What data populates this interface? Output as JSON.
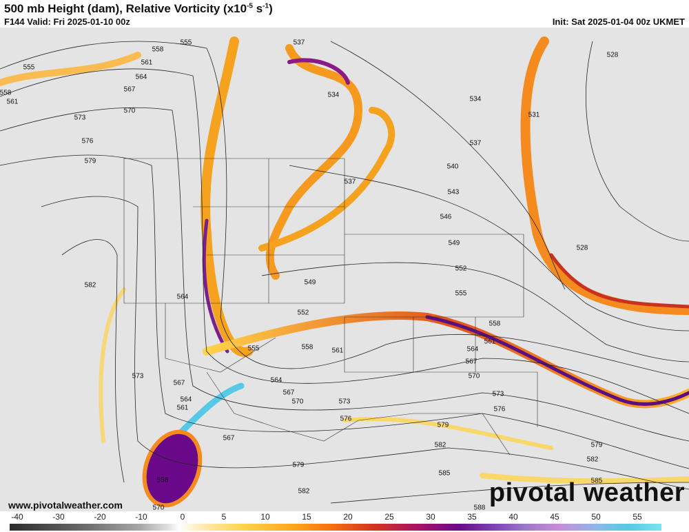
{
  "header": {
    "title": "500 mb Height (dam), Relative Vorticity (x10",
    "title_exp1": "-5",
    "title_mid": " s",
    "title_exp2": "-1",
    "title_end": ")",
    "valid": "F144 Valid: Fri 2025-01-10 00z",
    "init": "Init: Sat 2025-01-04 00z UKMET"
  },
  "contour_labels": [
    558,
    555,
    561,
    555,
    564,
    567,
    558,
    561,
    570,
    573,
    576,
    579,
    582,
    564,
    573,
    567,
    564,
    561,
    537,
    534,
    534,
    528,
    531,
    537,
    540,
    537,
    543,
    546,
    549,
    528,
    552,
    549,
    555,
    552,
    558,
    561,
    555,
    558,
    561,
    564,
    567,
    570,
    564,
    567,
    570,
    573,
    576,
    573,
    576,
    579,
    582,
    579,
    582,
    585,
    585,
    579,
    582,
    567,
    558,
    570,
    588
  ],
  "colorbar_ticks": [
    -40,
    -30,
    -20,
    -10,
    0,
    5,
    10,
    15,
    20,
    25,
    30,
    35,
    40,
    45,
    50,
    55
  ],
  "footer": {
    "website": "www.pivotalweather.com",
    "brand": "pivotal weather"
  }
}
